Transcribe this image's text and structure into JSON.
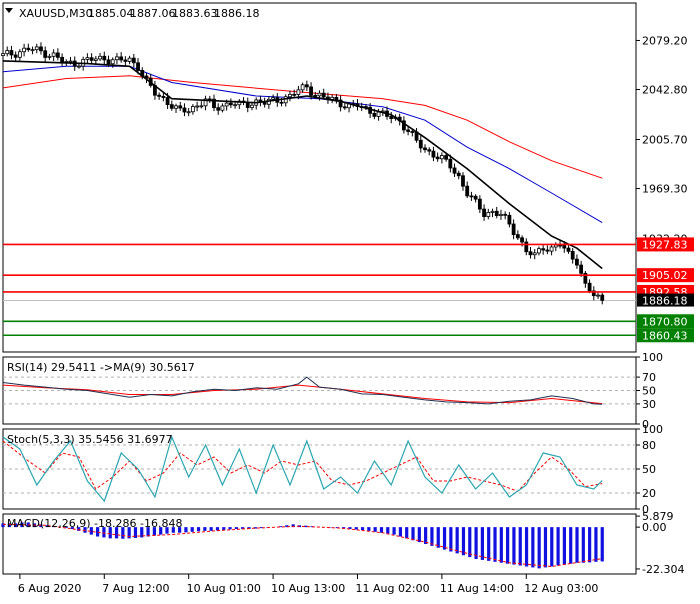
{
  "chart_data": {
    "type": "candlestick",
    "symbol_header": {
      "symbol": "XAUUSD,M30",
      "open": "1885.04",
      "high": "1887.06",
      "low": "1883.63",
      "close": "1886.18"
    },
    "price_axis": {
      "ylim": [
        1848,
        2107
      ],
      "ticks": [
        "2079.20",
        "2042.80",
        "2005.70",
        "1969.30",
        "1932.20"
      ],
      "tick_values": [
        2079.2,
        2042.8,
        2005.7,
        1969.3,
        1932.2
      ]
    },
    "current_price": {
      "value": 1886.18,
      "label": "1886.18"
    },
    "levels": [
      {
        "value": 1927.83,
        "label": "1927.83",
        "color": "#ff0000"
      },
      {
        "value": 1905.02,
        "label": "1905.02",
        "color": "#ff0000"
      },
      {
        "value": 1892.58,
        "label": "1892.58",
        "color": "#ff0000"
      },
      {
        "value": 1870.8,
        "label": "1870.80",
        "color": "#008000"
      },
      {
        "value": 1860.43,
        "label": "1860.43",
        "color": "#008000"
      }
    ],
    "close_path": [
      [
        0,
        2068
      ],
      [
        3,
        2070
      ],
      [
        6,
        2073
      ],
      [
        9,
        2071
      ],
      [
        12,
        2068
      ],
      [
        15,
        2062
      ],
      [
        18,
        2063
      ],
      [
        21,
        2065
      ],
      [
        24,
        2066
      ],
      [
        27,
        2064
      ],
      [
        30,
        2065
      ],
      [
        32,
        2060
      ],
      [
        34,
        2048
      ],
      [
        36,
        2040
      ],
      [
        38,
        2036
      ],
      [
        40,
        2031
      ],
      [
        42,
        2026
      ],
      [
        44,
        2028
      ],
      [
        46,
        2031
      ],
      [
        48,
        2035
      ],
      [
        50,
        2029
      ],
      [
        52,
        2031
      ],
      [
        54,
        2033
      ],
      [
        56,
        2031
      ],
      [
        58,
        2032
      ],
      [
        60,
        2034
      ],
      [
        62,
        2033
      ],
      [
        64,
        2034
      ],
      [
        66,
        2036
      ],
      [
        68,
        2038
      ],
      [
        70,
        2042
      ],
      [
        72,
        2045
      ],
      [
        74,
        2039
      ],
      [
        76,
        2037
      ],
      [
        78,
        2035
      ],
      [
        80,
        2033
      ],
      [
        82,
        2030
      ],
      [
        84,
        2031
      ],
      [
        86,
        2028
      ],
      [
        88,
        2026
      ],
      [
        90,
        2024
      ],
      [
        92,
        2022
      ],
      [
        94,
        2020
      ],
      [
        96,
        2012
      ],
      [
        98,
        2004
      ],
      [
        100,
        1998
      ],
      [
        102,
        1995
      ],
      [
        104,
        1991
      ],
      [
        106,
        1986
      ],
      [
        108,
        1978
      ],
      [
        110,
        1966
      ],
      [
        112,
        1958
      ],
      [
        114,
        1951
      ],
      [
        116,
        1952
      ],
      [
        118,
        1950
      ],
      [
        120,
        1942
      ],
      [
        122,
        1934
      ],
      [
        124,
        1923
      ],
      [
        126,
        1919
      ],
      [
        128,
        1926
      ],
      [
        130,
        1925
      ],
      [
        132,
        1928
      ],
      [
        134,
        1920
      ],
      [
        136,
        1916
      ],
      [
        138,
        1897
      ],
      [
        140,
        1890
      ],
      [
        142,
        1886
      ]
    ],
    "ema_black": [
      [
        0,
        2064
      ],
      [
        20,
        2062
      ],
      [
        30,
        2060
      ],
      [
        40,
        2036
      ],
      [
        60,
        2033
      ],
      [
        72,
        2038
      ],
      [
        80,
        2034
      ],
      [
        92,
        2024
      ],
      [
        100,
        2007
      ],
      [
        110,
        1984
      ],
      [
        120,
        1958
      ],
      [
        130,
        1934
      ],
      [
        136,
        1925
      ],
      [
        142,
        1910
      ]
    ],
    "ema_blue": [
      [
        0,
        2056
      ],
      [
        15,
        2060
      ],
      [
        30,
        2060
      ],
      [
        40,
        2048
      ],
      [
        60,
        2038
      ],
      [
        75,
        2036
      ],
      [
        90,
        2030
      ],
      [
        100,
        2020
      ],
      [
        110,
        2000
      ],
      [
        120,
        1984
      ],
      [
        130,
        1966
      ],
      [
        142,
        1944
      ]
    ],
    "ema_red": [
      [
        0,
        2044
      ],
      [
        15,
        2051
      ],
      [
        30,
        2053
      ],
      [
        45,
        2048
      ],
      [
        70,
        2041
      ],
      [
        90,
        2036
      ],
      [
        100,
        2031
      ],
      [
        110,
        2020
      ],
      [
        120,
        2004
      ],
      [
        130,
        1990
      ],
      [
        142,
        1977
      ]
    ],
    "x_labels": [
      "6 Aug 2020",
      "7 Aug 12:00",
      "10 Aug 01:00",
      "10 Aug 13:00",
      "11 Aug 02:00",
      "11 Aug 14:00",
      "12 Aug 03:00"
    ],
    "x_label_positions": [
      4,
      24,
      44,
      64,
      84,
      104,
      124
    ],
    "x_range": [
      0,
      150
    ],
    "rsi": {
      "title": "RSI(14) 29.5411  ->MA(9) 30.5617",
      "ylim": [
        0,
        100
      ],
      "ticks": [
        "100",
        "70",
        "50",
        "30",
        "0"
      ],
      "tick_values": [
        100,
        70,
        50,
        30,
        0
      ],
      "series": [
        [
          0,
          62
        ],
        [
          5,
          58
        ],
        [
          10,
          55
        ],
        [
          15,
          52
        ],
        [
          20,
          50
        ],
        [
          25,
          45
        ],
        [
          30,
          40
        ],
        [
          35,
          44
        ],
        [
          40,
          42
        ],
        [
          45,
          48
        ],
        [
          50,
          52
        ],
        [
          55,
          50
        ],
        [
          60,
          54
        ],
        [
          65,
          52
        ],
        [
          70,
          60
        ],
        [
          72,
          70
        ],
        [
          75,
          55
        ],
        [
          80,
          52
        ],
        [
          85,
          45
        ],
        [
          90,
          44
        ],
        [
          95,
          40
        ],
        [
          100,
          36
        ],
        [
          105,
          33
        ],
        [
          110,
          32
        ],
        [
          115,
          30
        ],
        [
          120,
          34
        ],
        [
          125,
          36
        ],
        [
          130,
          42
        ],
        [
          135,
          38
        ],
        [
          140,
          30
        ],
        [
          142,
          29.5
        ]
      ],
      "ma": [
        [
          0,
          58
        ],
        [
          10,
          54
        ],
        [
          20,
          51
        ],
        [
          30,
          44
        ],
        [
          40,
          44
        ],
        [
          50,
          50
        ],
        [
          60,
          52
        ],
        [
          70,
          58
        ],
        [
          80,
          52
        ],
        [
          90,
          45
        ],
        [
          100,
          38
        ],
        [
          110,
          33
        ],
        [
          120,
          32
        ],
        [
          130,
          38
        ],
        [
          142,
          30.5
        ]
      ]
    },
    "stoch": {
      "title": "Stoch(5,3,3) 35.5456 31.6977",
      "ylim": [
        0,
        100
      ],
      "ticks": [
        "100",
        "80",
        "50",
        "20",
        "0"
      ],
      "tick_values": [
        100,
        80,
        50,
        20,
        0
      ],
      "series": [
        [
          0,
          90
        ],
        [
          4,
          75
        ],
        [
          8,
          30
        ],
        [
          12,
          60
        ],
        [
          16,
          85
        ],
        [
          20,
          35
        ],
        [
          24,
          10
        ],
        [
          28,
          70
        ],
        [
          32,
          50
        ],
        [
          36,
          15
        ],
        [
          40,
          90
        ],
        [
          44,
          40
        ],
        [
          48,
          80
        ],
        [
          52,
          30
        ],
        [
          56,
          75
        ],
        [
          60,
          20
        ],
        [
          64,
          80
        ],
        [
          68,
          30
        ],
        [
          72,
          85
        ],
        [
          76,
          25
        ],
        [
          80,
          40
        ],
        [
          84,
          20
        ],
        [
          88,
          60
        ],
        [
          92,
          30
        ],
        [
          96,
          85
        ],
        [
          100,
          40
        ],
        [
          104,
          20
        ],
        [
          108,
          55
        ],
        [
          112,
          25
        ],
        [
          116,
          45
        ],
        [
          120,
          15
        ],
        [
          124,
          30
        ],
        [
          128,
          70
        ],
        [
          132,
          65
        ],
        [
          136,
          30
        ],
        [
          140,
          25
        ],
        [
          142,
          35.5
        ]
      ],
      "signal": [
        [
          0,
          85
        ],
        [
          6,
          60
        ],
        [
          10,
          45
        ],
        [
          14,
          70
        ],
        [
          18,
          65
        ],
        [
          22,
          25
        ],
        [
          26,
          40
        ],
        [
          30,
          60
        ],
        [
          34,
          35
        ],
        [
          38,
          45
        ],
        [
          42,
          70
        ],
        [
          46,
          55
        ],
        [
          50,
          65
        ],
        [
          54,
          45
        ],
        [
          58,
          55
        ],
        [
          62,
          45
        ],
        [
          66,
          60
        ],
        [
          70,
          55
        ],
        [
          74,
          60
        ],
        [
          78,
          35
        ],
        [
          82,
          30
        ],
        [
          86,
          35
        ],
        [
          90,
          45
        ],
        [
          94,
          55
        ],
        [
          98,
          65
        ],
        [
          102,
          35
        ],
        [
          106,
          35
        ],
        [
          110,
          40
        ],
        [
          114,
          35
        ],
        [
          118,
          30
        ],
        [
          122,
          22
        ],
        [
          126,
          45
        ],
        [
          130,
          65
        ],
        [
          134,
          50
        ],
        [
          138,
          28
        ],
        [
          142,
          31.7
        ]
      ]
    },
    "macd": {
      "title": "MACD(12,26,9) -18.286 -16.848",
      "ylim": [
        -25,
        7
      ],
      "ticks": [
        "5.879",
        "0.00",
        "-22.304"
      ],
      "tick_values": [
        5.879,
        0,
        -22.304
      ],
      "signal_label": "-16.848",
      "hist": [
        2,
        2,
        2,
        2.5,
        2.5,
        2,
        1.5,
        1,
        0.5,
        0,
        -0.5,
        -1,
        -2,
        -3,
        -4,
        -5,
        -5.5,
        -6,
        -6,
        -6.2,
        -6,
        -5.8,
        -5.5,
        -5,
        -4.5,
        -4,
        -3.5,
        -3,
        -3,
        -2.8,
        -2.5,
        -2.2,
        -2,
        -2,
        -1.8,
        -1.5,
        -1.2,
        -1,
        -1,
        -1,
        -0.8,
        -0.5,
        -0.3,
        0,
        0.5,
        1,
        1.5,
        1,
        0.8,
        0.5,
        0.2,
        0,
        -0.2,
        -0.5,
        -0.8,
        -1,
        -1.3,
        -1.6,
        -2,
        -2.5,
        -3,
        -3.5,
        -4,
        -5,
        -6,
        -7,
        -8,
        -9,
        -10,
        -11,
        -12,
        -13,
        -14,
        -15,
        -16,
        -17,
        -17.5,
        -18,
        -18.5,
        -19,
        -19.5,
        -20,
        -20.5,
        -21,
        -21.5,
        -22,
        -21.5,
        -21,
        -20.5,
        -20,
        -19.5,
        -19,
        -19,
        -18.8,
        -18.5,
        -18.3
      ],
      "signal": [
        [
          0,
          1.5
        ],
        [
          10,
          1
        ],
        [
          20,
          -2
        ],
        [
          30,
          -5
        ],
        [
          40,
          -4
        ],
        [
          50,
          -2
        ],
        [
          60,
          -0.5
        ],
        [
          70,
          0.5
        ],
        [
          80,
          -0.5
        ],
        [
          90,
          -3
        ],
        [
          100,
          -8
        ],
        [
          110,
          -14
        ],
        [
          120,
          -19
        ],
        [
          130,
          -21
        ],
        [
          142,
          -16.8
        ]
      ]
    }
  }
}
